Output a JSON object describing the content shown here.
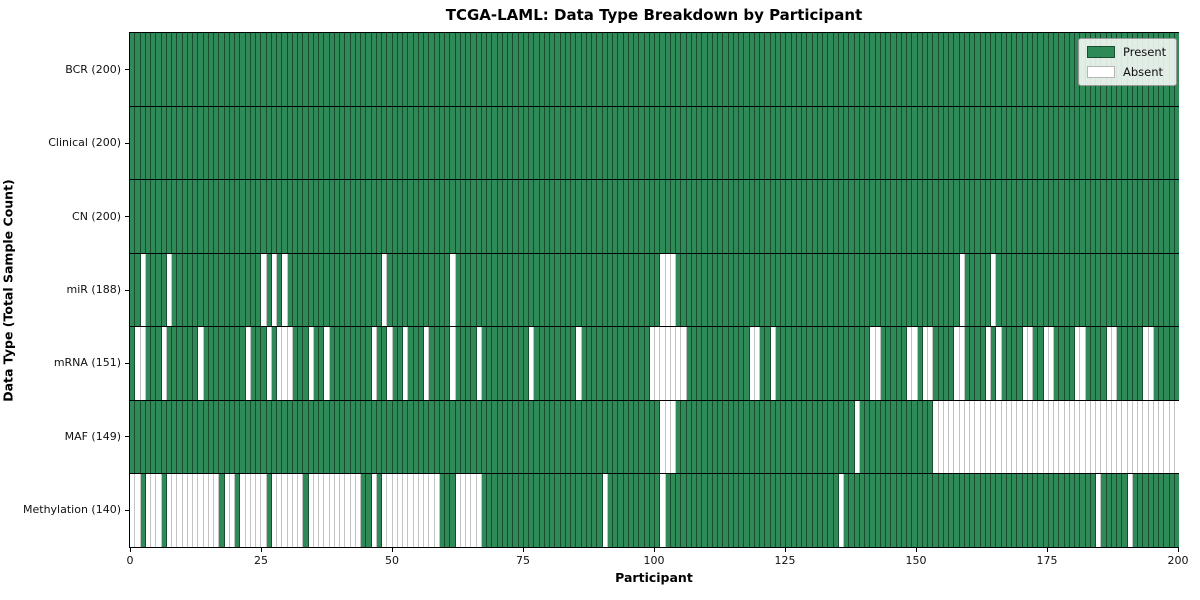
{
  "figure": {
    "title": "TCGA-LAML: Data Type Breakdown by Participant",
    "xlabel": "Participant",
    "ylabel": "Data Type (Total Sample Count)"
  },
  "legend": {
    "present_label": "Present",
    "absent_label": "Absent"
  },
  "colors": {
    "present": "#2e8b57",
    "absent": "#ffffff",
    "row_divider": "#000000"
  },
  "chart_data": {
    "type": "heatmap",
    "title": "TCGA-LAML: Data Type Breakdown by Participant",
    "xlabel": "Participant",
    "ylabel": "Data Type (Total Sample Count)",
    "legend_entries": [
      "Present",
      "Absent"
    ],
    "legend_position": "upper right",
    "n_participants": 200,
    "x_ticks": [
      0,
      25,
      50,
      75,
      100,
      125,
      150,
      175,
      200
    ],
    "value_semantics": {
      "present": 1,
      "absent": 0
    },
    "rows": [
      {
        "data_type": "BCR",
        "label": "BCR (200)",
        "present_count": 200,
        "absent_participants": []
      },
      {
        "data_type": "Clinical",
        "label": "Clinical (200)",
        "present_count": 200,
        "absent_participants": []
      },
      {
        "data_type": "CN",
        "label": "CN (200)",
        "present_count": 200,
        "absent_participants": []
      },
      {
        "data_type": "miR",
        "label": "miR (188)",
        "present_count": 188,
        "absent_participants": [
          2,
          7,
          25,
          27,
          29,
          48,
          61,
          101,
          102,
          103,
          158,
          164
        ]
      },
      {
        "data_type": "mRNA",
        "label": "mRNA (151)",
        "present_count": 151,
        "absent_participants": [
          1,
          2,
          6,
          13,
          22,
          26,
          28,
          29,
          30,
          34,
          37,
          46,
          49,
          52,
          56,
          61,
          66,
          76,
          85,
          99,
          100,
          101,
          102,
          103,
          104,
          105,
          118,
          119,
          122,
          141,
          142,
          148,
          149,
          151,
          152,
          157,
          158,
          163,
          165,
          170,
          171,
          174,
          175,
          180,
          181,
          186,
          187,
          193,
          194
        ]
      },
      {
        "data_type": "MAF",
        "label": "MAF (149)",
        "present_count": 149,
        "absent_participants": [
          101,
          102,
          103,
          138,
          153,
          154,
          155,
          156,
          157,
          158,
          159,
          160,
          161,
          162,
          163,
          164,
          165,
          166,
          167,
          168,
          169,
          170,
          171,
          172,
          173,
          174,
          175,
          176,
          177,
          178,
          179,
          180,
          181,
          182,
          183,
          184,
          185,
          186,
          187,
          188,
          189,
          190,
          191,
          192,
          193,
          194,
          195,
          196,
          197,
          198,
          199
        ]
      },
      {
        "data_type": "Methylation",
        "label": "Methylation (140)",
        "present_count": 140,
        "absent_participants": [
          0,
          1,
          3,
          4,
          5,
          7,
          8,
          9,
          10,
          11,
          12,
          13,
          14,
          15,
          16,
          18,
          19,
          21,
          22,
          23,
          24,
          25,
          27,
          28,
          29,
          30,
          31,
          32,
          34,
          35,
          36,
          37,
          38,
          39,
          40,
          41,
          42,
          43,
          46,
          48,
          49,
          50,
          51,
          52,
          53,
          54,
          55,
          56,
          57,
          58,
          62,
          63,
          64,
          65,
          66,
          90,
          101,
          135,
          184,
          190
        ]
      }
    ]
  }
}
